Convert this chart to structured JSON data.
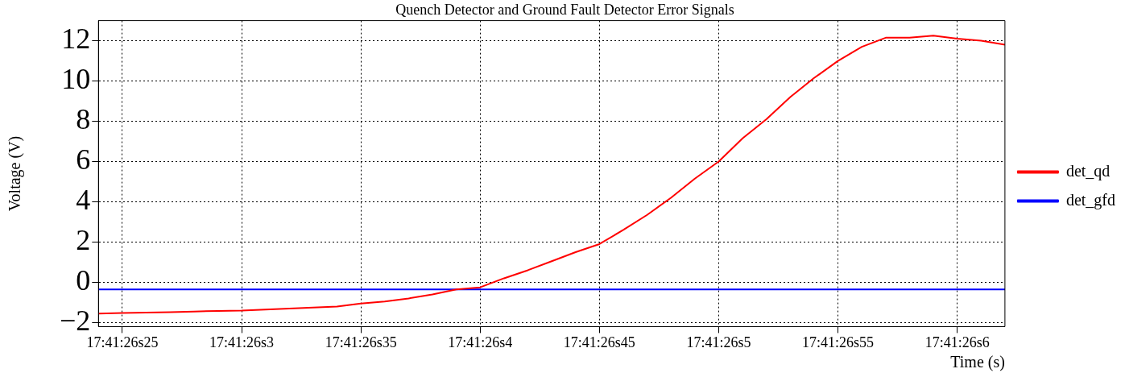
{
  "chart_data": {
    "type": "line",
    "title": "Quench Detector and Ground Fault Detector Error Signals",
    "xlabel": "Time (s)",
    "ylabel": "Voltage (V)",
    "categories": [
      null,
      "17:41:26s25",
      null,
      null,
      null,
      null,
      "17:41:26s3",
      null,
      null,
      null,
      null,
      "17:41:26s35",
      null,
      null,
      null,
      null,
      "17:41:26s4",
      null,
      null,
      null,
      null,
      "17:41:26s45",
      null,
      null,
      null,
      null,
      "17:41:26s5",
      null,
      null,
      null,
      null,
      "17:41:26s55",
      null,
      null,
      null,
      null,
      "17:41:26s6",
      null,
      null
    ],
    "ylim": [
      -2.2,
      13
    ],
    "yticks": [
      {
        "value": -2,
        "label": "−2"
      },
      0,
      2,
      4,
      6,
      8,
      10,
      12
    ],
    "grid": true,
    "legend": "right",
    "line_style": "solid",
    "series": [
      {
        "name": "det_qd",
        "color": "#ff0000",
        "values": [
          -1.55,
          -1.52,
          -1.5,
          -1.48,
          -1.45,
          -1.42,
          -1.4,
          -1.35,
          -1.3,
          -1.25,
          -1.2,
          -1.05,
          -0.95,
          -0.8,
          -0.6,
          -0.35,
          -0.25,
          0.2,
          0.6,
          1.05,
          1.5,
          1.9,
          2.6,
          3.35,
          4.2,
          5.15,
          6.0,
          7.15,
          8.1,
          9.2,
          10.15,
          11.0,
          11.7,
          12.15,
          12.15,
          12.25,
          12.1,
          12.0,
          11.8
        ]
      },
      {
        "name": "det_gfd",
        "color": "#0000ff",
        "values": [
          -0.35,
          -0.35,
          -0.35,
          -0.35,
          -0.35,
          -0.35,
          -0.35,
          -0.35,
          -0.35,
          -0.35,
          -0.35,
          -0.35,
          -0.35,
          -0.35,
          -0.35,
          -0.35,
          -0.35,
          -0.35,
          -0.35,
          -0.35,
          -0.35,
          -0.35,
          -0.35,
          -0.35,
          -0.35,
          -0.35,
          -0.35,
          -0.35,
          -0.35,
          -0.35,
          -0.35,
          -0.35,
          -0.35,
          -0.35,
          -0.35,
          -0.35,
          -0.35,
          -0.35,
          -0.35
        ]
      }
    ]
  }
}
